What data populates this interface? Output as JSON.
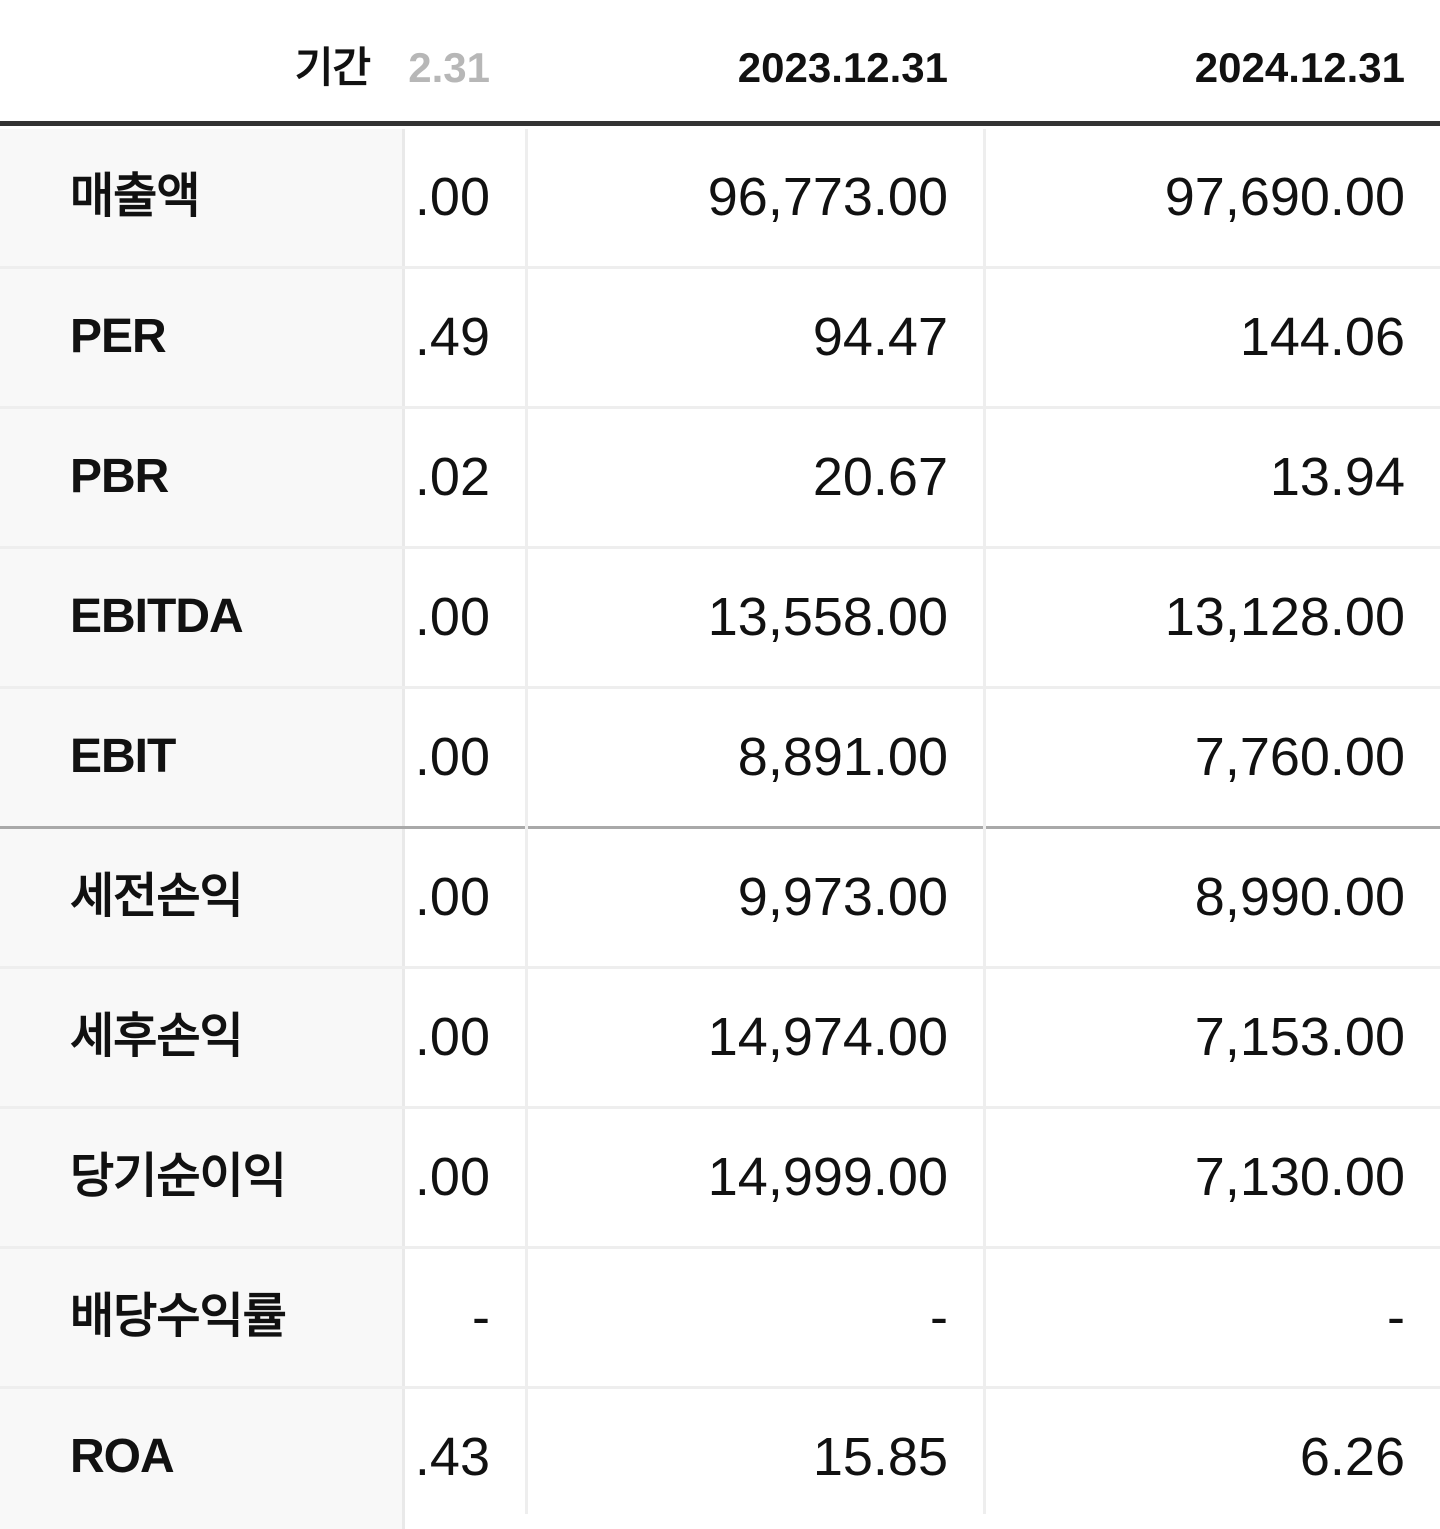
{
  "header": {
    "period_label": "기간",
    "columns": [
      "2.31",
      "2023.12.31",
      "2024.12.31"
    ]
  },
  "rows": [
    {
      "label": "매출액",
      "values": [
        ".00",
        "96,773.00",
        "97,690.00"
      ]
    },
    {
      "label": "PER",
      "values": [
        ".49",
        "94.47",
        "144.06"
      ]
    },
    {
      "label": "PBR",
      "values": [
        ".02",
        "20.67",
        "13.94"
      ]
    },
    {
      "label": "EBITDA",
      "values": [
        ".00",
        "13,558.00",
        "13,128.00"
      ]
    },
    {
      "label": "EBIT",
      "values": [
        ".00",
        "8,891.00",
        "7,760.00"
      ]
    },
    {
      "label": "세전손익",
      "values": [
        ".00",
        "9,973.00",
        "8,990.00"
      ]
    },
    {
      "label": "세후손익",
      "values": [
        ".00",
        "14,974.00",
        "7,153.00"
      ]
    },
    {
      "label": "당기순이익",
      "values": [
        ".00",
        "14,999.00",
        "7,130.00"
      ]
    },
    {
      "label": "배당수익률",
      "values": [
        "-",
        "-",
        "-"
      ]
    },
    {
      "label": "ROA",
      "values": [
        ".43",
        "15.85",
        "6.26"
      ]
    }
  ]
}
